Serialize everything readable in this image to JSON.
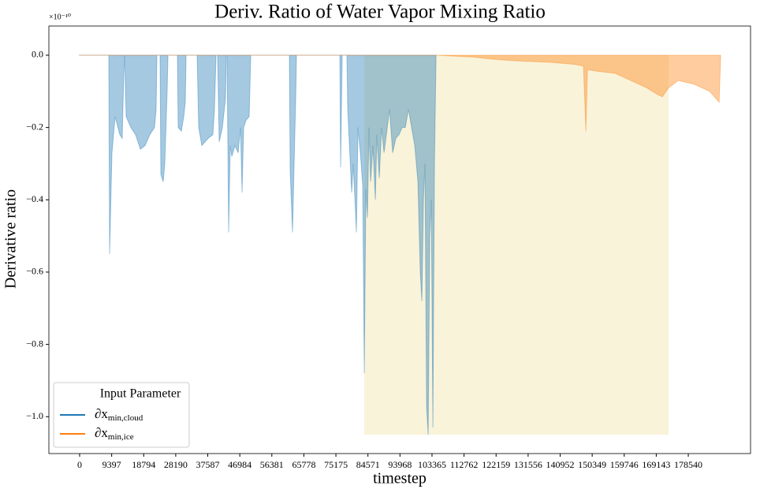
{
  "chart_data": {
    "type": "area",
    "title": "Deriv. Ratio of Water Vapor Mixing Ratio",
    "x_label": "timestep",
    "y_label": "Derivative ratio",
    "y_offset_text": "×10⁻¹⁰",
    "legend_title": "Input Parameter",
    "legend_position": "lower left",
    "xlim": [
      -9020,
      196800
    ],
    "ylim": [
      -1.102,
      0.0807
    ],
    "xticks": [
      0,
      9397,
      18794,
      28190,
      37587,
      46984,
      56381,
      65778,
      75175,
      84571,
      93968,
      103365,
      112762,
      122159,
      131556,
      140952,
      150349,
      159746,
      169143,
      178540
    ],
    "yticks": [
      {
        "value": 0,
        "label": "0.0"
      },
      {
        "value": -0.2,
        "label": "−0.2"
      },
      {
        "value": -0.4,
        "label": "−0.4"
      },
      {
        "value": -0.6,
        "label": "−0.6"
      },
      {
        "value": -0.8,
        "label": "−0.8"
      },
      {
        "value": -1.0,
        "label": "−1.0"
      }
    ],
    "highlight": {
      "x": [
        83499,
        172781
      ],
      "y": [
        -1.05,
        0
      ],
      "color": "#f9f3da"
    },
    "series": [
      {
        "name": "∂x",
        "name_subscript": "min,cloud",
        "color": "#1f77b4",
        "x": [
          0,
          8558,
          8789,
          9483,
          10409,
          11796,
          12490,
          12953,
          13184,
          13647,
          15035,
          16422,
          17810,
          19198,
          20586,
          21974,
          22436,
          22667,
          23593,
          23824,
          24518,
          24980,
          25674,
          25906,
          28681,
          28913,
          29838,
          30532,
          30994,
          31226,
          34464,
          34926,
          35851,
          37702,
          39090,
          39552,
          40015,
          40478,
          40940,
          41865,
          42791,
          43022,
          43253,
          43484,
          43716,
          44178,
          44641,
          45566,
          46491,
          47185,
          47648,
          48110,
          48804,
          49730,
          50192,
          61526,
          61757,
          62451,
          62914,
          63376,
          63607,
          76329,
          76560,
          77023,
          78411,
          78642,
          79798,
          80261,
          81186,
          81649,
          82343,
          83037,
          83499,
          83962,
          84425,
          84887,
          85350,
          86044,
          86738,
          87200,
          87894,
          88588,
          89282,
          89976,
          90901,
          91826,
          92751,
          93677,
          94602,
          95527,
          96452,
          97377,
          98303,
          99228,
          99922,
          100384,
          100847,
          101309,
          101772,
          102235,
          102697,
          103160,
          103622,
          104085,
          104548
        ],
        "values": [
          0,
          0,
          -0.55,
          -0.27,
          -0.17,
          -0.22,
          -0.23,
          -0.05,
          0,
          -0.17,
          -0.2,
          -0.22,
          -0.26,
          -0.25,
          -0.22,
          -0.2,
          -0.15,
          0,
          0,
          -0.33,
          -0.35,
          -0.3,
          -0.1,
          0,
          0,
          -0.2,
          -0.21,
          -0.17,
          -0.13,
          0,
          0,
          -0.2,
          -0.25,
          -0.23,
          -0.22,
          -0.15,
          0,
          0,
          -0.24,
          -0.2,
          -0.12,
          0,
          0,
          -0.25,
          -0.49,
          -0.25,
          -0.28,
          -0.25,
          -0.27,
          -0.2,
          -0.38,
          -0.2,
          -0.18,
          -0.17,
          0,
          0,
          -0.32,
          -0.49,
          -0.3,
          -0.12,
          0,
          0,
          -0.31,
          0,
          0,
          -0.15,
          -0.38,
          -0.3,
          -0.49,
          -0.2,
          -0.27,
          -0.36,
          -0.88,
          -0.37,
          -0.45,
          -0.2,
          -0.35,
          -0.25,
          -0.4,
          -0.22,
          -0.34,
          -0.2,
          -0.27,
          -0.22,
          -0.15,
          -0.27,
          -0.23,
          -0.22,
          -0.2,
          -0.2,
          -0.15,
          -0.2,
          -0.25,
          -0.35,
          -0.6,
          -0.68,
          -0.4,
          -0.3,
          -0.97,
          -1.05,
          -0.5,
          -0.4,
          -1.03,
          -0.3,
          0
        ]
      },
      {
        "name": "∂x",
        "name_subscript": "min,ice",
        "color": "#ff7f0e",
        "x": [
          0,
          104548,
          115419,
          120045,
          126984,
          138549,
          145025,
          147801,
          148495,
          148957,
          152427,
          157053,
          161679,
          166305,
          169774,
          170931,
          172781,
          175556,
          180183,
          184809,
          187584,
          188047
        ],
        "values": [
          0,
          0,
          -0.005,
          -0.01,
          -0.015,
          -0.02,
          -0.025,
          -0.03,
          -0.21,
          -0.04,
          -0.045,
          -0.05,
          -0.07,
          -0.09,
          -0.11,
          -0.115,
          -0.09,
          -0.07,
          -0.08,
          -0.1,
          -0.13,
          0
        ]
      }
    ]
  }
}
